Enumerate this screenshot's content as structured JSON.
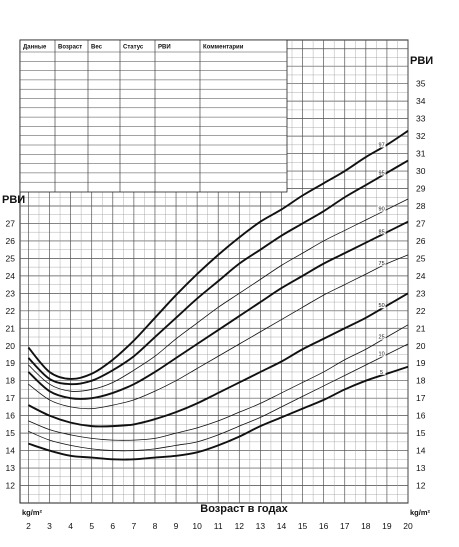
{
  "chart_data": {
    "type": "line",
    "xlabel": "Возраст в годах",
    "ylabel_left": "PBИ",
    "ylabel_right": "PBИ",
    "unit_left": "kg/m²",
    "unit_right": "kg/m²",
    "xlim": [
      1.6,
      20.0
    ],
    "ylim": [
      11.0,
      37.5
    ],
    "left_axis_range": [
      12,
      27
    ],
    "right_axis_range": [
      12,
      35
    ],
    "x_ticks": [
      "2",
      "3",
      "4",
      "5",
      "6",
      "7",
      "8",
      "9",
      "10",
      "11",
      "12",
      "13",
      "14",
      "15",
      "16",
      "17",
      "18",
      "19",
      "20"
    ],
    "grid": true,
    "table_headers": [
      "Данные",
      "Возраст",
      "Вес",
      "Статус",
      "PBИ",
      "Комментарии"
    ],
    "series": [
      {
        "name": "97",
        "bold": true,
        "x": [
          2,
          3,
          4,
          5,
          6,
          7,
          8,
          9,
          10,
          11,
          12,
          13,
          14,
          15,
          16,
          17,
          18,
          19,
          20
        ],
        "values": [
          19.9,
          18.5,
          18.1,
          18.4,
          19.2,
          20.3,
          21.6,
          22.9,
          24.1,
          25.2,
          26.2,
          27.1,
          27.8,
          28.6,
          29.3,
          30.0,
          30.8,
          31.5,
          32.3
        ]
      },
      {
        "name": "95",
        "bold": true,
        "x": [
          2,
          3,
          4,
          5,
          6,
          7,
          8,
          9,
          10,
          11,
          12,
          13,
          14,
          15,
          16,
          17,
          18,
          19,
          20
        ],
        "values": [
          19.3,
          18.1,
          17.8,
          18.0,
          18.6,
          19.4,
          20.5,
          21.6,
          22.7,
          23.7,
          24.7,
          25.5,
          26.3,
          27.0,
          27.7,
          28.5,
          29.2,
          29.9,
          30.6
        ]
      },
      {
        "name": "90",
        "bold": false,
        "x": [
          2,
          3,
          4,
          5,
          6,
          7,
          8,
          9,
          10,
          11,
          12,
          13,
          14,
          15,
          16,
          17,
          18,
          19,
          20
        ],
        "values": [
          18.9,
          17.8,
          17.4,
          17.5,
          17.9,
          18.6,
          19.4,
          20.4,
          21.3,
          22.2,
          23.0,
          23.8,
          24.6,
          25.3,
          26.0,
          26.6,
          27.2,
          27.8,
          28.4
        ]
      },
      {
        "name": "85",
        "bold": true,
        "x": [
          2,
          3,
          4,
          5,
          6,
          7,
          8,
          9,
          10,
          11,
          12,
          13,
          14,
          15,
          16,
          17,
          18,
          19,
          20
        ],
        "values": [
          18.5,
          17.4,
          17.0,
          17.0,
          17.3,
          17.8,
          18.5,
          19.3,
          20.1,
          20.9,
          21.7,
          22.5,
          23.3,
          24.0,
          24.7,
          25.3,
          25.9,
          26.5,
          27.1
        ]
      },
      {
        "name": "75",
        "bold": false,
        "x": [
          2,
          3,
          4,
          5,
          6,
          7,
          8,
          9,
          10,
          11,
          12,
          13,
          14,
          15,
          16,
          17,
          18,
          19,
          20
        ],
        "values": [
          17.8,
          16.9,
          16.5,
          16.4,
          16.6,
          16.9,
          17.4,
          18.0,
          18.7,
          19.4,
          20.1,
          20.8,
          21.5,
          22.2,
          22.9,
          23.5,
          24.1,
          24.7,
          25.2
        ]
      },
      {
        "name": "50",
        "bold": true,
        "x": [
          2,
          3,
          4,
          5,
          6,
          7,
          8,
          9,
          10,
          11,
          12,
          13,
          14,
          15,
          16,
          17,
          18,
          19,
          20
        ],
        "values": [
          16.6,
          16.0,
          15.6,
          15.4,
          15.4,
          15.5,
          15.8,
          16.2,
          16.7,
          17.3,
          17.9,
          18.5,
          19.1,
          19.8,
          20.4,
          21.0,
          21.6,
          22.3,
          23.0
        ]
      },
      {
        "name": "25",
        "bold": false,
        "x": [
          2,
          3,
          4,
          5,
          6,
          7,
          8,
          9,
          10,
          11,
          12,
          13,
          14,
          15,
          16,
          17,
          18,
          19,
          20
        ],
        "values": [
          15.7,
          15.2,
          14.9,
          14.7,
          14.6,
          14.6,
          14.7,
          15.0,
          15.3,
          15.7,
          16.2,
          16.7,
          17.3,
          17.9,
          18.5,
          19.2,
          19.8,
          20.5,
          21.2
        ]
      },
      {
        "name": "10",
        "bold": false,
        "x": [
          2,
          3,
          4,
          5,
          6,
          7,
          8,
          9,
          10,
          11,
          12,
          13,
          14,
          15,
          16,
          17,
          18,
          19,
          20
        ],
        "values": [
          15.1,
          14.6,
          14.3,
          14.1,
          14.0,
          14.0,
          14.1,
          14.3,
          14.5,
          14.9,
          15.4,
          15.9,
          16.5,
          17.1,
          17.7,
          18.3,
          18.9,
          19.5,
          20.1
        ]
      },
      {
        "name": "5",
        "bold": true,
        "x": [
          2,
          3,
          4,
          5,
          6,
          7,
          8,
          9,
          10,
          11,
          12,
          13,
          14,
          15,
          16,
          17,
          18,
          19,
          20
        ],
        "values": [
          14.4,
          14.0,
          13.7,
          13.6,
          13.5,
          13.5,
          13.6,
          13.7,
          13.9,
          14.3,
          14.8,
          15.4,
          15.9,
          16.4,
          16.9,
          17.5,
          18.0,
          18.4,
          18.8
        ]
      }
    ]
  }
}
